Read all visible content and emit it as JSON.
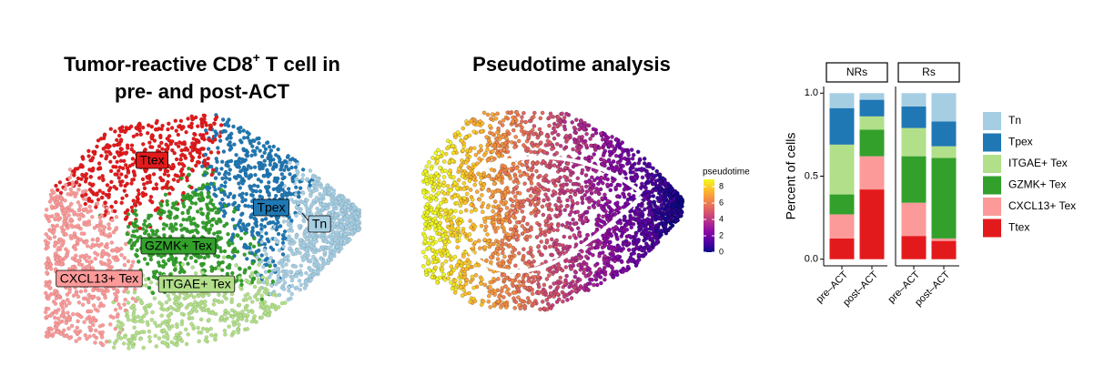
{
  "umap": {
    "title_main": "Tumor-reactive CD8",
    "title_sup": "+",
    "title_rest": " T cell in",
    "title_line2": "pre- and post-ACT",
    "labels": [
      "Ttex",
      "Tpex",
      "Tn",
      "GZMK+ Tex",
      "CXCL13+ Tex",
      "ITGAE+ Tex"
    ]
  },
  "pseudotime": {
    "title": "Pseudotime analysis",
    "legend_title": "pseudotime",
    "ticks": [
      0,
      2,
      4,
      6,
      8
    ],
    "lim": [
      0,
      8.9
    ]
  },
  "chart_data": {
    "type": "bar",
    "stacked": true,
    "y_label": "Percent of cells",
    "facets": [
      "NRs",
      "Rs"
    ],
    "categories": [
      "pre–ACT",
      "post–ACT"
    ],
    "ylim": [
      -0.04,
      1.04
    ],
    "yticks": [
      {
        "value": 0,
        "label": "0.0"
      },
      {
        "value": 0.5,
        "label": "0.5"
      },
      {
        "value": 1,
        "label": "1.0"
      }
    ],
    "series": [
      {
        "name": "Tn",
        "color": "#a6cee3",
        "values": [
          [
            0.09,
            0.04
          ],
          [
            0.08,
            0.17
          ]
        ]
      },
      {
        "name": "Tpex",
        "color": "#1f78b4",
        "values": [
          [
            0.22,
            0.1
          ],
          [
            0.13,
            0.15
          ]
        ]
      },
      {
        "name": "ITGAE+ Tex",
        "color": "#b2df8a",
        "values": [
          [
            0.3,
            0.08
          ],
          [
            0.17,
            0.07
          ]
        ]
      },
      {
        "name": "GZMK+ Tex",
        "color": "#33a02c",
        "values": [
          [
            0.12,
            0.16
          ],
          [
            0.28,
            0.485
          ]
        ]
      },
      {
        "name": "CXCL13+ Tex",
        "color": "#fb9a99",
        "values": [
          [
            0.145,
            0.2
          ],
          [
            0.2,
            0.015
          ]
        ]
      },
      {
        "name": "Ttex",
        "color": "#e31a1c",
        "values": [
          [
            0.125,
            0.42
          ],
          [
            0.14,
            0.11
          ]
        ]
      }
    ]
  }
}
